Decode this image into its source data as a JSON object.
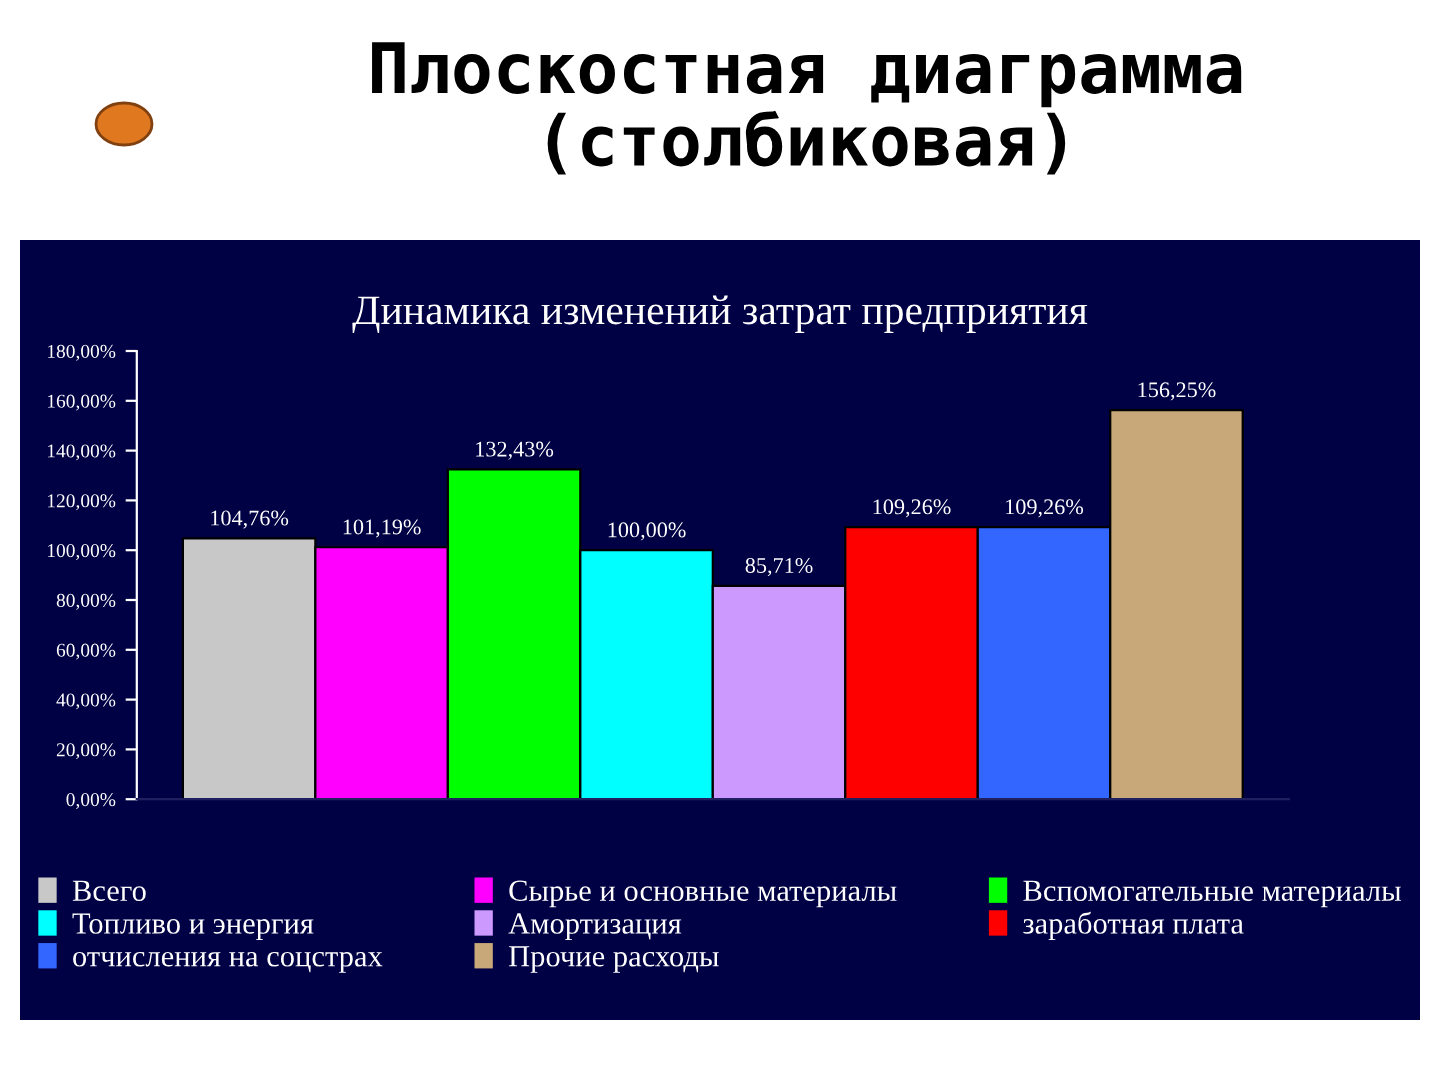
{
  "chart_data": {
    "type": "bar",
    "title": "Плоскостная диаграмма\n(столбиковая)",
    "subtitle": "Динамика изменений затрат предприятия",
    "categories": [
      null
    ],
    "series": [
      {
        "name": "Всего",
        "color": "#c8c8c8",
        "values": [
          104.76
        ],
        "value_labels": [
          "104,76%"
        ]
      },
      {
        "name": "Сырье и основные материалы",
        "color": "#ff00ff",
        "values": [
          101.19
        ],
        "value_labels": [
          "101,19%"
        ]
      },
      {
        "name": "Вспомогательные материалы",
        "color": "#00ff00",
        "values": [
          132.43
        ],
        "value_labels": [
          "132,43%"
        ]
      },
      {
        "name": "Топливо и энергия",
        "color": "#00ffff",
        "values": [
          100.0
        ],
        "value_labels": [
          "100,00%"
        ]
      },
      {
        "name": "Амортизация",
        "color": "#cc99ff",
        "values": [
          85.71
        ],
        "value_labels": [
          "85,71%"
        ]
      },
      {
        "name": "заработная плата",
        "color": "#ff0000",
        "values": [
          109.26
        ],
        "value_labels": [
          "109,26%"
        ]
      },
      {
        "name": "отчисления на соцстрах",
        "color": "#3366ff",
        "values": [
          109.26
        ],
        "value_labels": [
          "109,26%"
        ]
      },
      {
        "name": "Прочие расходы",
        "color": "#c8a878",
        "values": [
          156.25
        ],
        "value_labels": [
          "156,25%"
        ]
      }
    ],
    "ylim": [
      0,
      180
    ],
    "yticks": [
      {
        "value": 0,
        "label": "0,00%"
      },
      {
        "value": 20,
        "label": "20,00%"
      },
      {
        "value": 40,
        "label": "40,00%"
      },
      {
        "value": 60,
        "label": "60,00%"
      },
      {
        "value": 80,
        "label": "80,00%"
      },
      {
        "value": 100,
        "label": "100,00%"
      },
      {
        "value": 120,
        "label": "120,00%"
      },
      {
        "value": 140,
        "label": "140,00%"
      },
      {
        "value": 160,
        "label": "160,00%"
      },
      {
        "value": 180,
        "label": "180,00%"
      }
    ],
    "legend": "bottom",
    "grid": false
  }
}
